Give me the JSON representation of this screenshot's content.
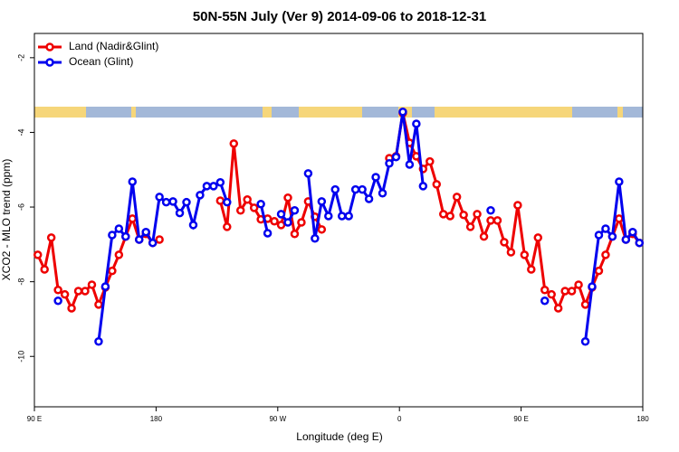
{
  "chart_data": {
    "type": "line",
    "title": "50N-55N July (Ver 9)   2014-09-06 to 2018-12-31",
    "x_label": "Longitude (deg E)",
    "y_label": "XCO2 - MLO trend (ppm)",
    "xlim": [
      90,
      540
    ],
    "xticks": [
      {
        "value": 90,
        "label": "90 E"
      },
      {
        "value": 180,
        "label": "180"
      },
      {
        "value": 270,
        "label": "90 W"
      },
      {
        "value": 360,
        "label": "0"
      },
      {
        "value": 450,
        "label": "90 E"
      },
      {
        "value": 540,
        "label": "180"
      }
    ],
    "ylim": [
      -11.35,
      -1.35
    ],
    "yticks": [
      -2,
      -4,
      -6,
      -8,
      -10
    ],
    "legend": "top-left",
    "x": [
      92.5,
      97.5,
      102.5,
      107.5,
      112.5,
      117.5,
      122.5,
      127.5,
      132.5,
      137.5,
      142.5,
      147.5,
      152.5,
      157.5,
      162.5,
      167.5,
      172.5,
      177.5,
      182.5,
      187.5,
      192.5,
      197.5,
      202.5,
      207.5,
      212.5,
      217.5,
      222.5,
      227.5,
      232.5,
      237.5,
      242.5,
      247.5,
      252.5,
      257.5,
      262.5,
      267.5,
      272.5,
      277.5,
      282.5,
      287.5,
      292.5,
      297.5,
      302.5,
      307.5,
      312.5,
      317.5,
      322.5,
      327.5,
      332.5,
      337.5,
      342.5,
      347.5,
      352.5,
      357.5,
      362.5,
      367.5,
      372.5,
      377.5,
      382.5,
      387.5,
      392.5,
      397.5,
      402.5,
      407.5,
      412.5,
      417.5,
      422.5,
      427.5,
      432.5,
      437.5,
      442.5,
      447.5,
      452.5,
      457.5,
      462.5,
      467.5,
      472.5,
      477.5,
      482.5,
      487.5,
      492.5,
      497.5,
      502.5,
      507.5,
      512.5,
      517.5,
      522.5,
      527.5,
      532.5,
      537.5
    ],
    "series": [
      {
        "name": "Land (Nadir&Glint)",
        "color": "#ee0000",
        "values": [
          -7.28,
          -7.67,
          -6.82,
          -8.22,
          -8.34,
          -8.71,
          -8.25,
          -8.25,
          -8.08,
          -8.61,
          -8.15,
          -7.71,
          -7.28,
          -6.79,
          -6.31,
          -6.87,
          -6.72,
          -6.96,
          -6.87,
          null,
          null,
          null,
          null,
          null,
          null,
          null,
          null,
          -5.83,
          -6.53,
          -4.3,
          -6.09,
          -5.8,
          -6.02,
          -6.33,
          -6.31,
          -6.38,
          -6.48,
          -5.75,
          -6.72,
          -6.41,
          -5.85,
          -6.26,
          -6.6,
          null,
          null,
          null,
          null,
          null,
          null,
          null,
          null,
          null,
          -4.69,
          -4.64,
          -3.48,
          -4.28,
          -4.64,
          -4.98,
          -4.78,
          -5.39,
          -6.19,
          -6.24,
          -5.73,
          -6.21,
          -6.53,
          -6.19,
          -6.79,
          -6.36,
          -6.36,
          -6.94,
          -7.21,
          -5.95,
          -7.28,
          -7.67,
          -6.82,
          -8.22,
          -8.34,
          -8.71,
          -8.25,
          -8.25,
          -8.08,
          -8.61,
          -8.15,
          -7.71,
          -7.28,
          -6.79,
          -6.31,
          -6.87,
          -6.72,
          -6.96
        ]
      },
      {
        "name": "Ocean (Glint)",
        "color": "#0000ee",
        "values": [
          null,
          null,
          null,
          -8.51,
          null,
          null,
          null,
          null,
          null,
          -9.6,
          -8.13,
          -6.75,
          -6.58,
          -6.79,
          -5.32,
          -6.87,
          -6.67,
          -6.96,
          -5.73,
          -5.87,
          -5.85,
          -6.16,
          -5.87,
          -6.48,
          -5.68,
          -5.44,
          -5.44,
          -5.34,
          -5.87,
          null,
          null,
          null,
          null,
          -5.92,
          -6.7,
          null,
          -6.19,
          -6.41,
          -6.09,
          null,
          -5.1,
          -6.84,
          -5.85,
          -6.24,
          -5.53,
          -6.24,
          -6.24,
          -5.53,
          -5.53,
          -5.78,
          -5.2,
          -5.63,
          -4.83,
          -4.66,
          -3.45,
          -4.86,
          -3.77,
          -5.44,
          null,
          null,
          null,
          null,
          null,
          null,
          null,
          null,
          null,
          -6.09,
          null,
          null,
          null,
          null,
          null,
          null,
          null,
          -8.51,
          null,
          null,
          null,
          null,
          null,
          -9.6,
          -8.13,
          -6.75,
          -6.58,
          -6.79,
          -5.32,
          -6.87,
          -6.67,
          -6.96
        ]
      }
    ]
  }
}
